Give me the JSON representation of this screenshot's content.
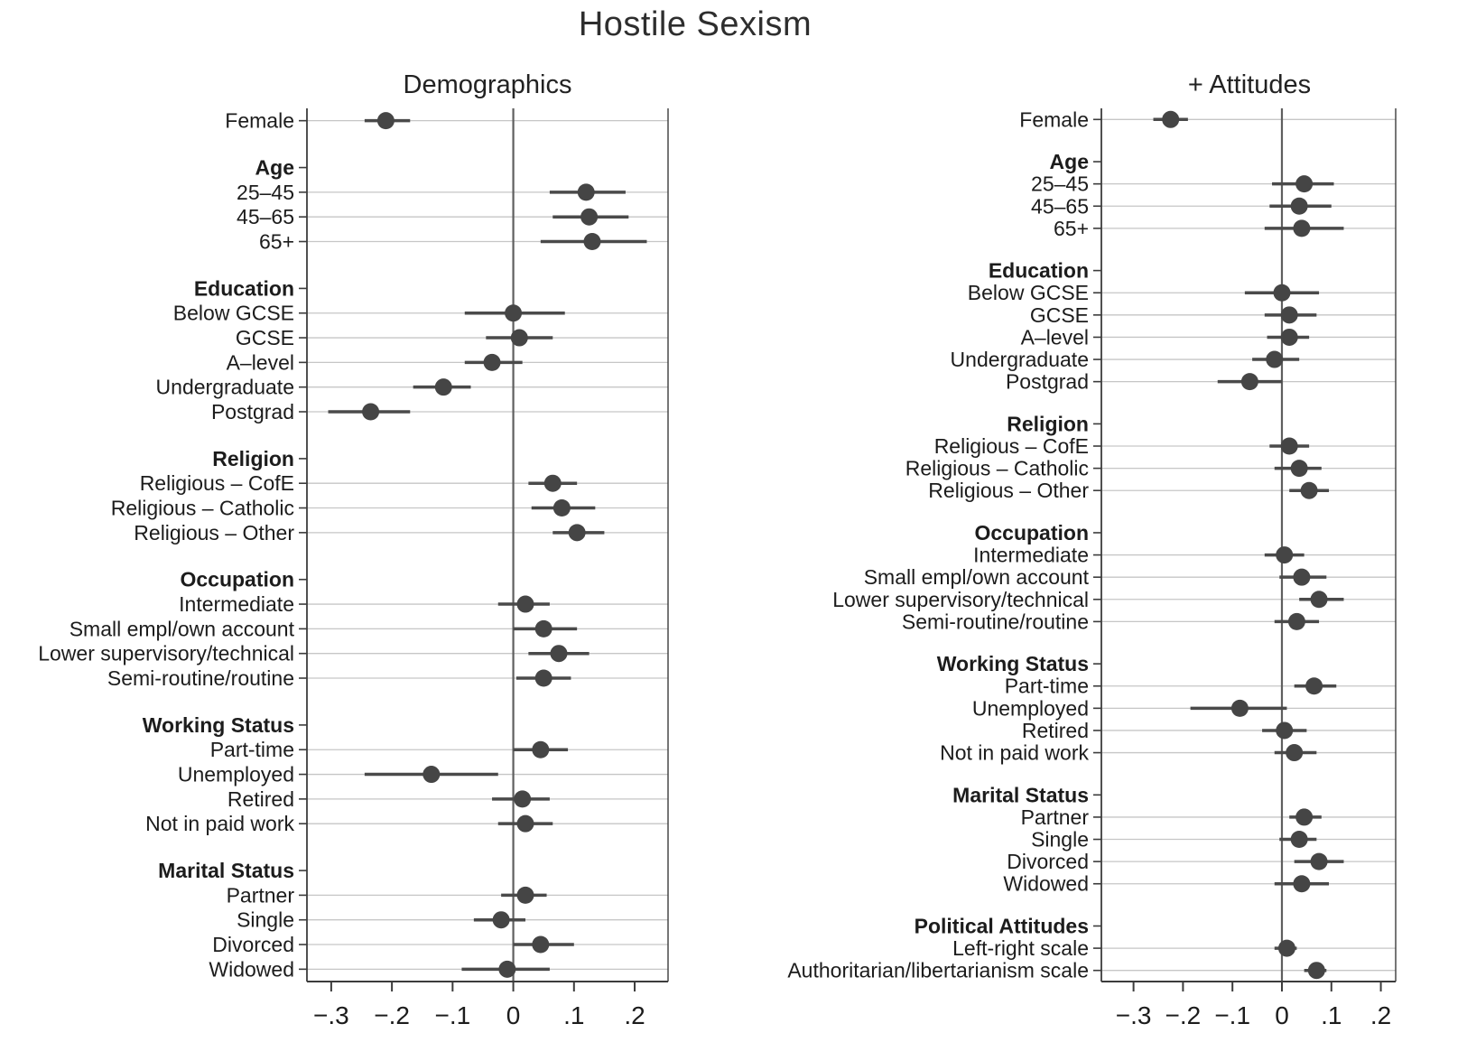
{
  "title": "Hostile Sexism",
  "colors": {
    "dot": "#454545",
    "ci": "#4a4a4a",
    "grid": "#c6c6c6",
    "zero_line": "#5f5f5f",
    "axis": "#3c3c3c",
    "text": "#1c1c1c",
    "background": "#ffffff"
  },
  "chart_data": [
    {
      "type": "dot-whisker",
      "title": "Demographics",
      "xlabel": "",
      "ylabel": "",
      "xlim": [
        -0.34,
        0.255
      ],
      "grid": true,
      "x_ticks": [
        -0.3,
        -0.2,
        -0.1,
        0,
        0.1,
        0.2
      ],
      "x_tick_labels": [
        "−.3",
        "−.2",
        "−.1",
        "0",
        ".1",
        ".2"
      ],
      "rows": [
        {
          "label": "Female",
          "est": -0.21,
          "lo": -0.245,
          "hi": -0.17
        },
        {
          "label": "Age",
          "header": true
        },
        {
          "label": "25–45",
          "est": 0.12,
          "lo": 0.06,
          "hi": 0.185
        },
        {
          "label": "45–65",
          "est": 0.125,
          "lo": 0.065,
          "hi": 0.19
        },
        {
          "label": "65+",
          "est": 0.13,
          "lo": 0.045,
          "hi": 0.22
        },
        {
          "label": "Education",
          "header": true
        },
        {
          "label": "Below GCSE",
          "est": 0.0,
          "lo": -0.08,
          "hi": 0.085
        },
        {
          "label": "GCSE",
          "est": 0.01,
          "lo": -0.045,
          "hi": 0.065
        },
        {
          "label": "A–level",
          "est": -0.035,
          "lo": -0.08,
          "hi": 0.015
        },
        {
          "label": "Undergraduate",
          "est": -0.115,
          "lo": -0.165,
          "hi": -0.07
        },
        {
          "label": "Postgrad",
          "est": -0.235,
          "lo": -0.305,
          "hi": -0.17
        },
        {
          "label": "Religion",
          "header": true
        },
        {
          "label": "Religious – CofE",
          "est": 0.065,
          "lo": 0.025,
          "hi": 0.105
        },
        {
          "label": "Religious – Catholic",
          "est": 0.08,
          "lo": 0.03,
          "hi": 0.135
        },
        {
          "label": "Religious – Other",
          "est": 0.105,
          "lo": 0.065,
          "hi": 0.15
        },
        {
          "label": "Occupation",
          "header": true
        },
        {
          "label": "Intermediate",
          "est": 0.02,
          "lo": -0.025,
          "hi": 0.06
        },
        {
          "label": "Small empl/own account",
          "est": 0.05,
          "lo": 0.0,
          "hi": 0.105
        },
        {
          "label": "Lower supervisory/technical",
          "est": 0.075,
          "lo": 0.025,
          "hi": 0.125
        },
        {
          "label": "Semi-routine/routine",
          "est": 0.05,
          "lo": 0.005,
          "hi": 0.095
        },
        {
          "label": "Working Status",
          "header": true
        },
        {
          "label": "Part-time",
          "est": 0.045,
          "lo": 0.0,
          "hi": 0.09
        },
        {
          "label": "Unemployed",
          "est": -0.135,
          "lo": -0.245,
          "hi": -0.025
        },
        {
          "label": "Retired",
          "est": 0.015,
          "lo": -0.035,
          "hi": 0.06
        },
        {
          "label": "Not in paid work",
          "est": 0.02,
          "lo": -0.025,
          "hi": 0.065
        },
        {
          "label": "Marital Status",
          "header": true
        },
        {
          "label": "Partner",
          "est": 0.02,
          "lo": -0.02,
          "hi": 0.055
        },
        {
          "label": "Single",
          "est": -0.02,
          "lo": -0.065,
          "hi": 0.02
        },
        {
          "label": "Divorced",
          "est": 0.045,
          "lo": 0.0,
          "hi": 0.1
        },
        {
          "label": "Widowed",
          "est": -0.01,
          "lo": -0.085,
          "hi": 0.06
        }
      ]
    },
    {
      "type": "dot-whisker",
      "title": "+ Attitudes",
      "xlabel": "",
      "ylabel": "",
      "xlim": [
        -0.365,
        0.23
      ],
      "grid": true,
      "x_ticks": [
        -0.3,
        -0.2,
        -0.1,
        0,
        0.1,
        0.2
      ],
      "x_tick_labels": [
        "−.3",
        "−.2",
        "−.1",
        "0",
        ".1",
        ".2"
      ],
      "rows": [
        {
          "label": "Female",
          "est": -0.225,
          "lo": -0.26,
          "hi": -0.19
        },
        {
          "label": "Age",
          "header": true
        },
        {
          "label": "25–45",
          "est": 0.045,
          "lo": -0.02,
          "hi": 0.105
        },
        {
          "label": "45–65",
          "est": 0.035,
          "lo": -0.025,
          "hi": 0.1
        },
        {
          "label": "65+",
          "est": 0.04,
          "lo": -0.035,
          "hi": 0.125
        },
        {
          "label": "Education",
          "header": true
        },
        {
          "label": "Below GCSE",
          "est": 0.0,
          "lo": -0.075,
          "hi": 0.075
        },
        {
          "label": "GCSE",
          "est": 0.015,
          "lo": -0.035,
          "hi": 0.07
        },
        {
          "label": "A–level",
          "est": 0.015,
          "lo": -0.03,
          "hi": 0.055
        },
        {
          "label": "Undergraduate",
          "est": -0.015,
          "lo": -0.06,
          "hi": 0.035
        },
        {
          "label": "Postgrad",
          "est": -0.065,
          "lo": -0.13,
          "hi": 0.0
        },
        {
          "label": "Religion",
          "header": true
        },
        {
          "label": "Religious – CofE",
          "est": 0.015,
          "lo": -0.025,
          "hi": 0.055
        },
        {
          "label": "Religious – Catholic",
          "est": 0.035,
          "lo": -0.015,
          "hi": 0.08
        },
        {
          "label": "Religious – Other",
          "est": 0.055,
          "lo": 0.015,
          "hi": 0.095
        },
        {
          "label": "Occupation",
          "header": true
        },
        {
          "label": "Intermediate",
          "est": 0.005,
          "lo": -0.035,
          "hi": 0.045
        },
        {
          "label": "Small empl/own account",
          "est": 0.04,
          "lo": -0.005,
          "hi": 0.09
        },
        {
          "label": "Lower supervisory/technical",
          "est": 0.075,
          "lo": 0.035,
          "hi": 0.125
        },
        {
          "label": "Semi-routine/routine",
          "est": 0.03,
          "lo": -0.015,
          "hi": 0.075
        },
        {
          "label": "Working Status",
          "header": true
        },
        {
          "label": "Part-time",
          "est": 0.065,
          "lo": 0.025,
          "hi": 0.11
        },
        {
          "label": "Unemployed",
          "est": -0.085,
          "lo": -0.185,
          "hi": 0.01
        },
        {
          "label": "Retired",
          "est": 0.005,
          "lo": -0.04,
          "hi": 0.05
        },
        {
          "label": "Not in paid work",
          "est": 0.025,
          "lo": -0.015,
          "hi": 0.07
        },
        {
          "label": "Marital Status",
          "header": true
        },
        {
          "label": "Partner",
          "est": 0.045,
          "lo": 0.015,
          "hi": 0.08
        },
        {
          "label": "Single",
          "est": 0.035,
          "lo": -0.005,
          "hi": 0.07
        },
        {
          "label": "Divorced",
          "est": 0.075,
          "lo": 0.025,
          "hi": 0.125
        },
        {
          "label": "Widowed",
          "est": 0.04,
          "lo": -0.015,
          "hi": 0.095
        },
        {
          "label": "Political Attitudes",
          "header": true
        },
        {
          "label": "Left-right scale",
          "est": 0.01,
          "lo": -0.015,
          "hi": 0.03
        },
        {
          "label": "Authoritarian/libertarianism scale",
          "est": 0.07,
          "lo": 0.045,
          "hi": 0.09
        }
      ]
    }
  ]
}
